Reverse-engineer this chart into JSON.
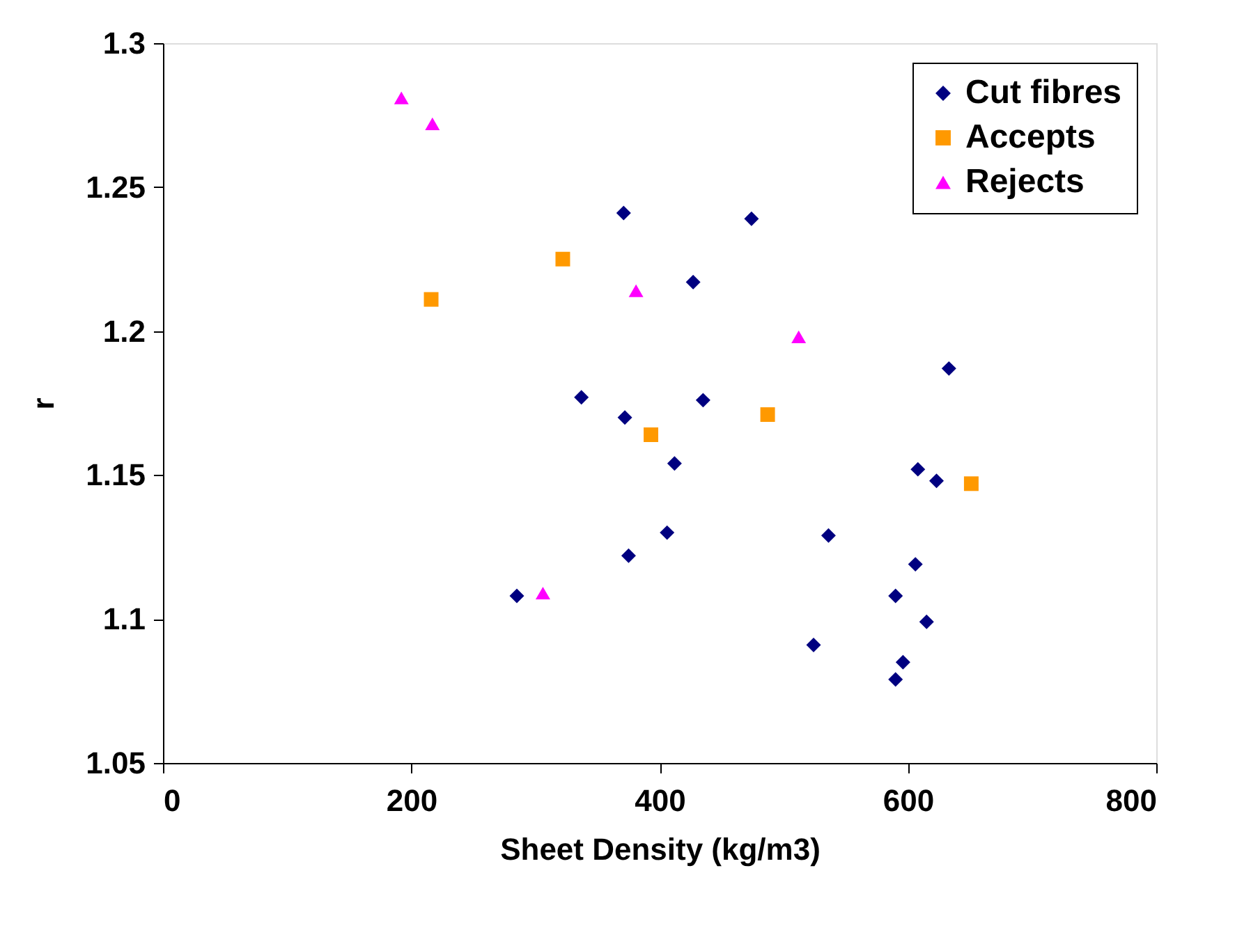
{
  "chart_data": {
    "type": "scatter",
    "xlabel": "Sheet Density (kg/m3)",
    "ylabel": "r",
    "xlim": [
      0,
      800
    ],
    "xticks": [
      0,
      200,
      400,
      600,
      800
    ],
    "ylim": [
      1.05,
      1.3
    ],
    "yticks": [
      1.05,
      1.1,
      1.15,
      1.2,
      1.25,
      1.3
    ],
    "grid": false,
    "legend": "top right",
    "series": [
      {
        "name": "Cut fibres",
        "color": "#000080",
        "marker": "diamond",
        "x": [
          285,
          337,
          371,
          372,
          375,
          406,
          412,
          427,
          435,
          474,
          524,
          536,
          590,
          590,
          596,
          606,
          608,
          615,
          623,
          633
        ],
        "values": [
          1.108,
          1.177,
          1.241,
          1.17,
          1.122,
          1.13,
          1.154,
          1.217,
          1.176,
          1.239,
          1.091,
          1.129,
          1.108,
          1.079,
          1.085,
          1.119,
          1.152,
          1.099,
          1.148,
          1.187
        ]
      },
      {
        "name": "Accepts",
        "color": "#ff9900",
        "marker": "square",
        "x": [
          216,
          322,
          393,
          487,
          651
        ],
        "values": [
          1.211,
          1.225,
          1.164,
          1.171,
          1.147
        ]
      },
      {
        "name": "Rejects",
        "color": "#ff00ff",
        "marker": "triangle",
        "x": [
          192,
          217,
          306,
          381,
          512
        ],
        "values": [
          1.281,
          1.272,
          1.109,
          1.214,
          1.198
        ]
      }
    ]
  }
}
